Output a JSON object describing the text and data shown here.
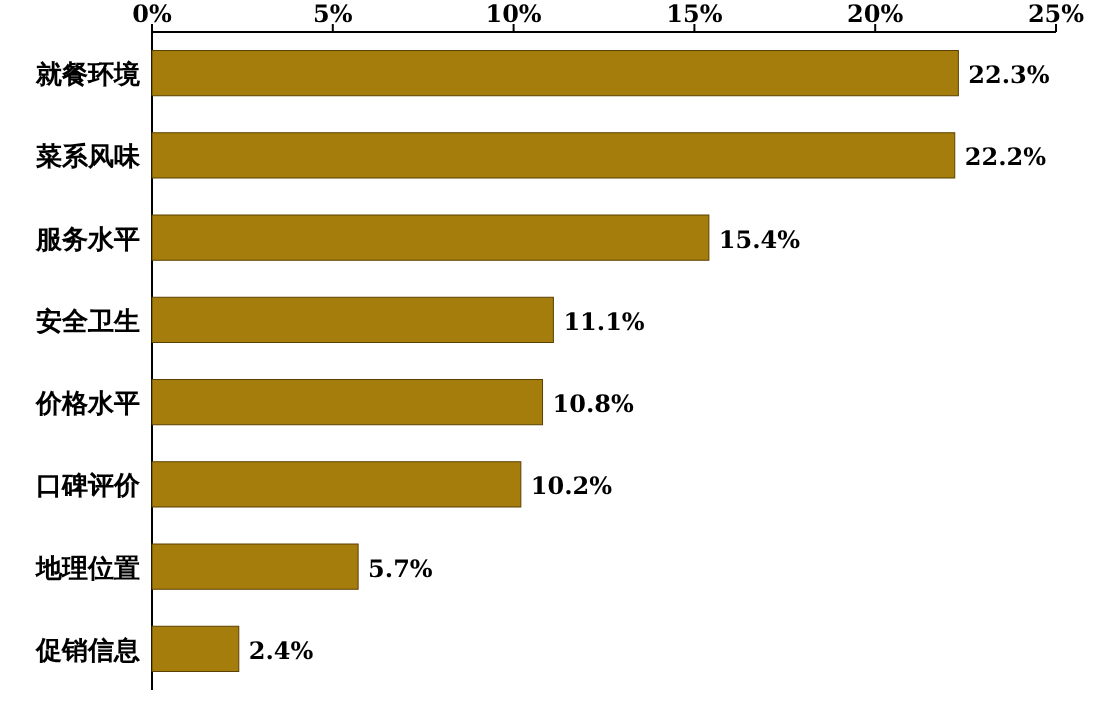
{
  "chart_data": {
    "type": "bar",
    "orientation": "horizontal",
    "categories": [
      "就餐环境",
      "菜系风味",
      "服务水平",
      "安全卫生",
      "价格水平",
      "口碑评价",
      "地理位置",
      "促销信息"
    ],
    "values": [
      22.3,
      22.2,
      15.4,
      11.1,
      10.8,
      10.2,
      5.7,
      2.4
    ],
    "value_labels": [
      "22.3%",
      "22.2%",
      "15.4%",
      "11.1%",
      "10.8%",
      "10.2%",
      "5.7%",
      "2.4%"
    ],
    "color": "#a57d0c",
    "xlim": [
      0,
      25
    ],
    "xticks": [
      {
        "value": 0,
        "label": "0%"
      },
      {
        "value": 5,
        "label": "5%"
      },
      {
        "value": 10,
        "label": "10%"
      },
      {
        "value": 15,
        "label": "15%"
      },
      {
        "value": 20,
        "label": "20%"
      },
      {
        "value": 25,
        "label": "25%"
      }
    ],
    "tick_labels": "x"
  }
}
